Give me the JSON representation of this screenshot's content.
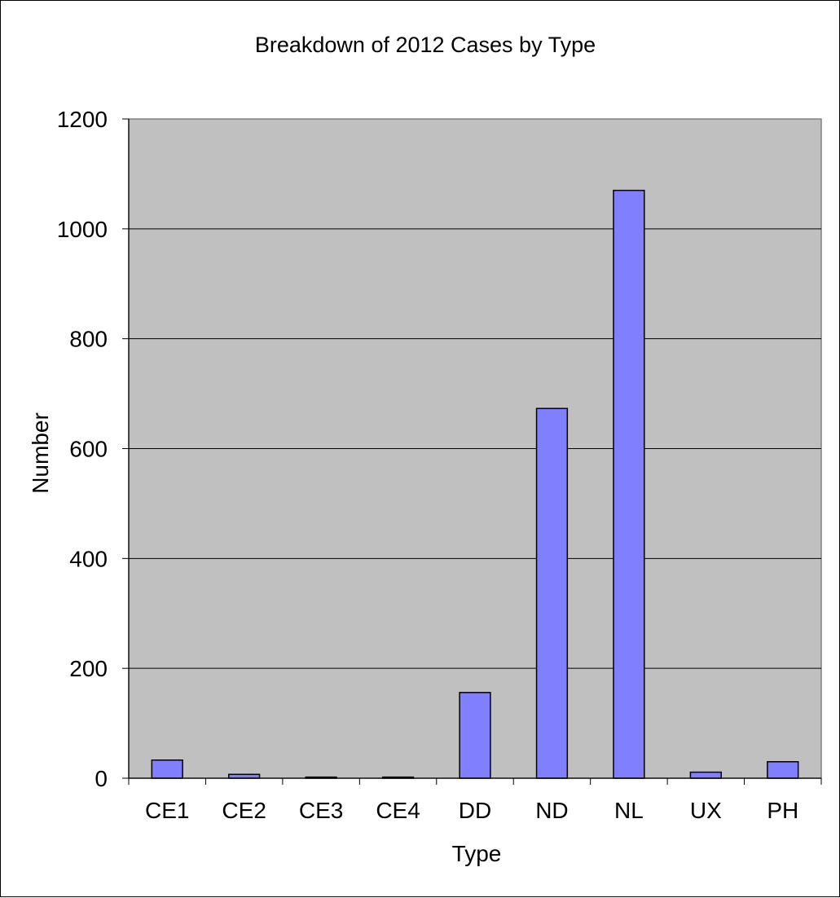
{
  "chart_data": {
    "type": "bar",
    "title": "Breakdown of 2012 Cases by Type",
    "xlabel": "Type",
    "ylabel": "Number",
    "categories": [
      "CE1",
      "CE2",
      "CE3",
      "CE4",
      "DD",
      "ND",
      "NL",
      "UX",
      "PH"
    ],
    "values": [
      33,
      7,
      2,
      2,
      156,
      673,
      1070,
      11,
      30
    ],
    "ylim": [
      0,
      1200
    ],
    "yticks": [
      0,
      200,
      400,
      600,
      800,
      1000,
      1200
    ],
    "grid": true,
    "legend": "none",
    "colors": {
      "bar_fill": "#8080ff",
      "bar_stroke": "#000000",
      "plot_background": "#c0c0c0",
      "gridline": "#000000"
    }
  }
}
